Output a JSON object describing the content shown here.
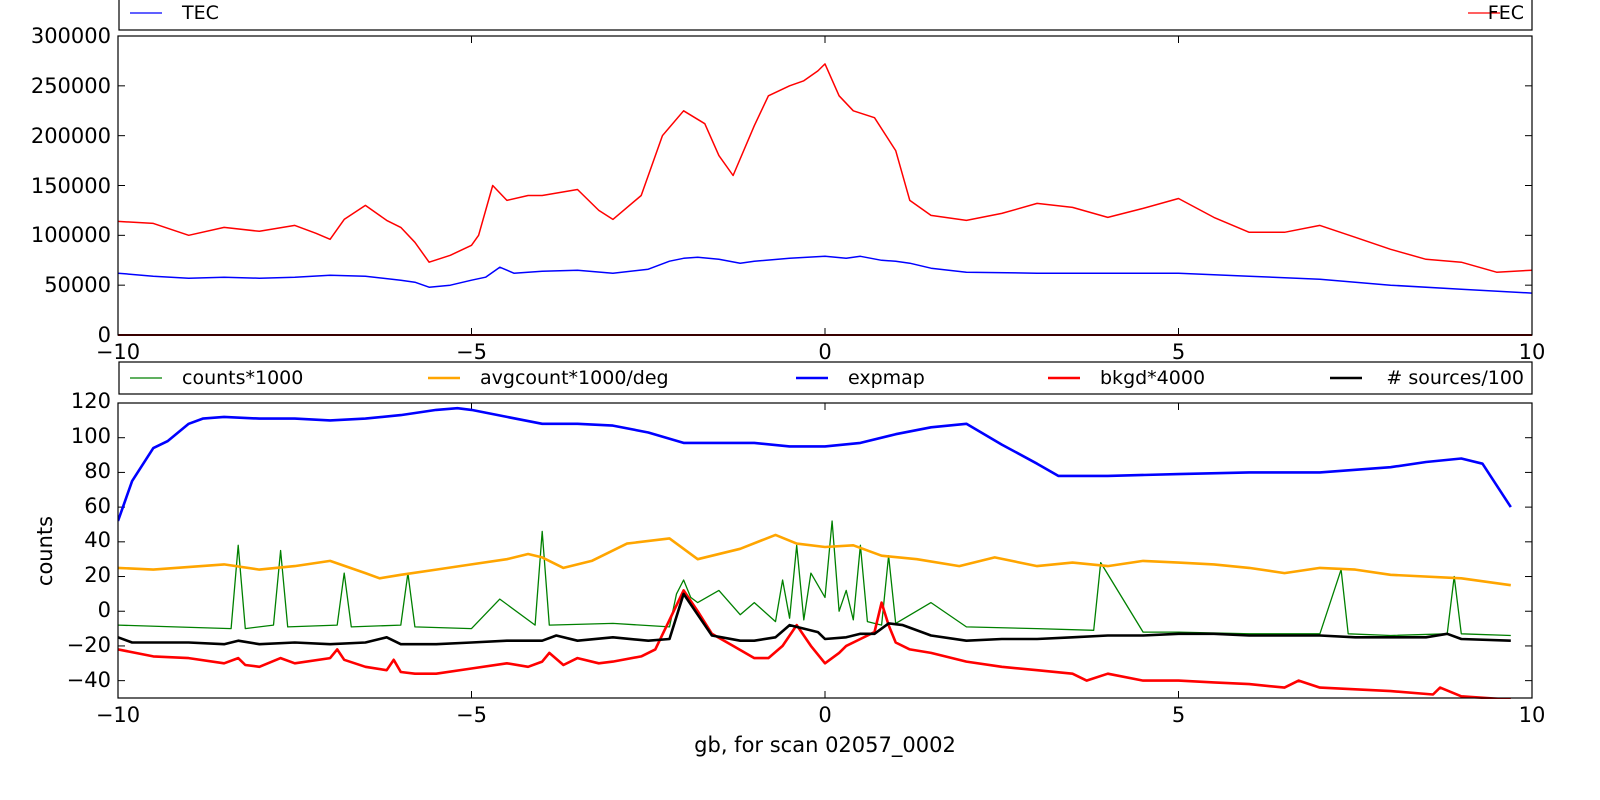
{
  "chart_data": [
    {
      "type": "line",
      "xlabel": "",
      "ylabel": "",
      "xlim": [
        -10,
        10
      ],
      "ylim": [
        0,
        300000
      ],
      "xticks": [
        "−10",
        "−5",
        "0",
        "5",
        "10"
      ],
      "yticks": [
        "0",
        "50000",
        "100000",
        "150000",
        "200000",
        "250000",
        "300000"
      ],
      "legend_position": "top",
      "series": [
        {
          "name": "TEC",
          "color": "#0000ff",
          "x": [
            -10,
            -9.5,
            -9,
            -8.5,
            -8,
            -7.5,
            -7,
            -6.5,
            -6,
            -5.8,
            -5.6,
            -5.3,
            -5,
            -4.8,
            -4.6,
            -4.4,
            -4,
            -3.5,
            -3,
            -2.5,
            -2.2,
            -2,
            -1.8,
            -1.5,
            -1.2,
            -1,
            -0.5,
            0,
            0.3,
            0.5,
            0.8,
            1,
            1.2,
            1.5,
            2,
            3,
            4,
            5,
            6,
            7,
            8,
            9,
            10
          ],
          "y": [
            62000,
            59000,
            57000,
            58000,
            57000,
            58000,
            60000,
            59000,
            55000,
            53000,
            48000,
            50000,
            55000,
            58000,
            68000,
            62000,
            64000,
            65000,
            62000,
            66000,
            74000,
            77000,
            78000,
            76000,
            72000,
            74000,
            77000,
            79000,
            77000,
            79000,
            75000,
            74000,
            72000,
            67000,
            63000,
            62000,
            62000,
            62000,
            59000,
            56000,
            50000,
            46000,
            42000
          ]
        },
        {
          "name": "FEC",
          "color": "#ff0000",
          "x": [
            -10,
            -9.5,
            -9,
            -8.5,
            -8,
            -7.5,
            -7.2,
            -7,
            -6.8,
            -6.5,
            -6.2,
            -6,
            -5.8,
            -5.6,
            -5.3,
            -5,
            -4.9,
            -4.7,
            -4.5,
            -4.2,
            -4,
            -3.5,
            -3.2,
            -3,
            -2.6,
            -2.3,
            -2,
            -1.7,
            -1.5,
            -1.3,
            -1,
            -0.8,
            -0.5,
            -0.3,
            -0.1,
            0,
            0.2,
            0.4,
            0.7,
            1,
            1.2,
            1.5,
            2,
            2.5,
            3,
            3.5,
            4,
            4.5,
            5,
            5.5,
            6,
            6.5,
            7,
            7.5,
            8,
            8.5,
            9,
            9.5,
            10
          ],
          "y": [
            114000,
            112000,
            100000,
            108000,
            104000,
            110000,
            102000,
            96000,
            116000,
            130000,
            115000,
            108000,
            93000,
            73000,
            80000,
            90000,
            100000,
            150000,
            135000,
            140000,
            140000,
            146000,
            125000,
            116000,
            140000,
            200000,
            225000,
            212000,
            180000,
            160000,
            210000,
            240000,
            250000,
            255000,
            265000,
            272000,
            240000,
            225000,
            218000,
            185000,
            135000,
            120000,
            115000,
            122000,
            132000,
            128000,
            118000,
            127000,
            137000,
            118000,
            103000,
            103000,
            110000,
            98000,
            86000,
            76000,
            73000,
            63000,
            65000
          ]
        },
        {
          "name": "",
          "color": "#8b0000",
          "x": [
            -10,
            10
          ],
          "y": [
            0,
            0
          ]
        }
      ]
    },
    {
      "type": "line",
      "xlabel": "gb, for scan 02057_0002",
      "ylabel": "counts",
      "xlim": [
        -10,
        10
      ],
      "ylim": [
        -50,
        120
      ],
      "xticks": [
        "−10",
        "−5",
        "0",
        "5",
        "10"
      ],
      "yticks": [
        "−40",
        "−20",
        "0",
        "20",
        "40",
        "60",
        "80",
        "100",
        "120"
      ],
      "legend_position": "top",
      "series": [
        {
          "name": "counts*1000",
          "color": "#008000",
          "x": [
            -10,
            -9.2,
            -8.4,
            -8.3,
            -8.2,
            -7.8,
            -7.7,
            -7.6,
            -6.9,
            -6.8,
            -6.7,
            -6,
            -5.9,
            -5.8,
            -5,
            -4.6,
            -4.1,
            -4,
            -3.9,
            -3,
            -2.2,
            -2.1,
            -2,
            -1.9,
            -1.8,
            -1.5,
            -1.2,
            -1,
            -0.7,
            -0.6,
            -0.5,
            -0.4,
            -0.3,
            -0.2,
            0,
            0.1,
            0.2,
            0.3,
            0.4,
            0.5,
            0.6,
            0.8,
            0.9,
            1,
            1.5,
            2,
            3,
            3.8,
            3.9,
            4.5,
            5,
            6,
            7,
            7.3,
            7.4,
            8,
            8.8,
            8.9,
            9,
            9.7
          ],
          "y": [
            -8,
            -9,
            -10,
            38,
            -10,
            -8,
            35,
            -9,
            -8,
            22,
            -9,
            -8,
            22,
            -9,
            -10,
            7,
            -8,
            46,
            -8,
            -7,
            -9,
            10,
            18,
            8,
            5,
            12,
            -2,
            5,
            -6,
            18,
            -4,
            38,
            -5,
            22,
            8,
            52,
            0,
            12,
            -5,
            38,
            -6,
            -8,
            32,
            -7,
            5,
            -9,
            -10,
            -11,
            28,
            -12,
            -12,
            -13,
            -13,
            24,
            -13,
            -14,
            -13,
            20,
            -13,
            -14
          ]
        },
        {
          "name": "avgcount*1000/deg",
          "color": "#ffa500",
          "x": [
            -10,
            -9.5,
            -8.5,
            -8,
            -7.5,
            -7,
            -6.5,
            -6.3,
            -6,
            -5.5,
            -5,
            -4.5,
            -4.2,
            -4,
            -3.7,
            -3.3,
            -2.8,
            -2.2,
            -1.8,
            -1.2,
            -0.7,
            -0.4,
            0,
            0.4,
            0.8,
            1.3,
            1.9,
            2.4,
            3,
            3.5,
            4,
            4.5,
            5,
            5.5,
            6,
            6.5,
            7,
            7.5,
            8,
            9,
            9.7
          ],
          "y": [
            25,
            24,
            27,
            24,
            26,
            29,
            22,
            19,
            21,
            24,
            27,
            30,
            33,
            31,
            25,
            29,
            39,
            42,
            30,
            36,
            44,
            39,
            37,
            38,
            32,
            30,
            26,
            31,
            26,
            28,
            26,
            29,
            28,
            27,
            25,
            22,
            25,
            24,
            21,
            19,
            15
          ]
        },
        {
          "name": "expmap",
          "color": "#0000ff",
          "x": [
            -10,
            -9.8,
            -9.5,
            -9.3,
            -9,
            -8.8,
            -8.5,
            -8,
            -7.5,
            -7,
            -6.5,
            -6,
            -5.5,
            -5.2,
            -5,
            -4.5,
            -4,
            -3.5,
            -3,
            -2.5,
            -2,
            -1.5,
            -1,
            -0.5,
            0,
            0.5,
            1,
            1.5,
            2,
            2.5,
            3,
            3.3,
            3.5,
            4,
            5,
            6,
            7,
            8,
            8.5,
            9,
            9.3,
            9.7
          ],
          "y": [
            52,
            75,
            94,
            98,
            108,
            111,
            112,
            111,
            111,
            110,
            111,
            113,
            116,
            117,
            116,
            112,
            108,
            108,
            107,
            103,
            97,
            97,
            97,
            95,
            95,
            97,
            102,
            106,
            108,
            96,
            85,
            78,
            78,
            78,
            79,
            80,
            80,
            83,
            86,
            88,
            85,
            60
          ]
        },
        {
          "name": "bkgd*4000",
          "color": "#ff0000",
          "x": [
            -10,
            -9.5,
            -9,
            -8.5,
            -8.3,
            -8.2,
            -8,
            -7.7,
            -7.5,
            -7,
            -6.9,
            -6.8,
            -6.5,
            -6.2,
            -6.1,
            -6,
            -5.8,
            -5.5,
            -5,
            -4.5,
            -4.2,
            -4,
            -3.9,
            -3.7,
            -3.5,
            -3.2,
            -3,
            -2.6,
            -2.4,
            -2.2,
            -2,
            -1.8,
            -1.6,
            -1.3,
            -1,
            -0.8,
            -0.6,
            -0.4,
            -0.2,
            0,
            0.2,
            0.3,
            0.5,
            0.7,
            0.8,
            0.9,
            1,
            1.2,
            1.5,
            2,
            2.5,
            3,
            3.5,
            3.7,
            4,
            4.5,
            5,
            5.5,
            6,
            6.5,
            6.7,
            7,
            8,
            8.6,
            8.7,
            9,
            9.7
          ],
          "y": [
            -22,
            -26,
            -27,
            -30,
            -27,
            -31,
            -32,
            -27,
            -30,
            -27,
            -22,
            -28,
            -32,
            -34,
            -28,
            -35,
            -36,
            -36,
            -33,
            -30,
            -32,
            -29,
            -24,
            -31,
            -27,
            -30,
            -29,
            -26,
            -22,
            -5,
            12,
            0,
            -13,
            -20,
            -27,
            -27,
            -20,
            -8,
            -20,
            -30,
            -24,
            -20,
            -16,
            -12,
            5,
            -8,
            -18,
            -22,
            -24,
            -29,
            -32,
            -34,
            -36,
            -40,
            -36,
            -40,
            -40,
            -41,
            -42,
            -44,
            -40,
            -44,
            -46,
            -48,
            -44,
            -49,
            -51
          ]
        },
        {
          "name": "# sources/100",
          "color": "#000000",
          "x": [
            -10,
            -9.8,
            -9,
            -8.5,
            -8.3,
            -8,
            -7.5,
            -7,
            -6.5,
            -6.2,
            -6,
            -5.5,
            -5,
            -4.5,
            -4,
            -3.8,
            -3.5,
            -3,
            -2.5,
            -2.2,
            -2,
            -1.8,
            -1.6,
            -1.2,
            -1,
            -0.7,
            -0.5,
            -0.3,
            -0.1,
            0,
            0.3,
            0.5,
            0.7,
            0.9,
            1.1,
            1.5,
            2,
            2.5,
            3,
            3.5,
            4,
            4.5,
            5,
            5.5,
            6,
            6.5,
            7,
            7.5,
            8,
            8.5,
            8.8,
            9,
            9.7
          ],
          "y": [
            -15,
            -18,
            -18,
            -19,
            -17,
            -19,
            -18,
            -19,
            -18,
            -15,
            -19,
            -19,
            -18,
            -17,
            -17,
            -14,
            -17,
            -15,
            -17,
            -16,
            10,
            -2,
            -14,
            -17,
            -17,
            -15,
            -8,
            -10,
            -12,
            -16,
            -15,
            -13,
            -13,
            -7,
            -8,
            -14,
            -17,
            -16,
            -16,
            -15,
            -14,
            -14,
            -13,
            -13,
            -14,
            -14,
            -14,
            -15,
            -15,
            -15,
            -13,
            -16,
            -17
          ]
        }
      ]
    }
  ]
}
